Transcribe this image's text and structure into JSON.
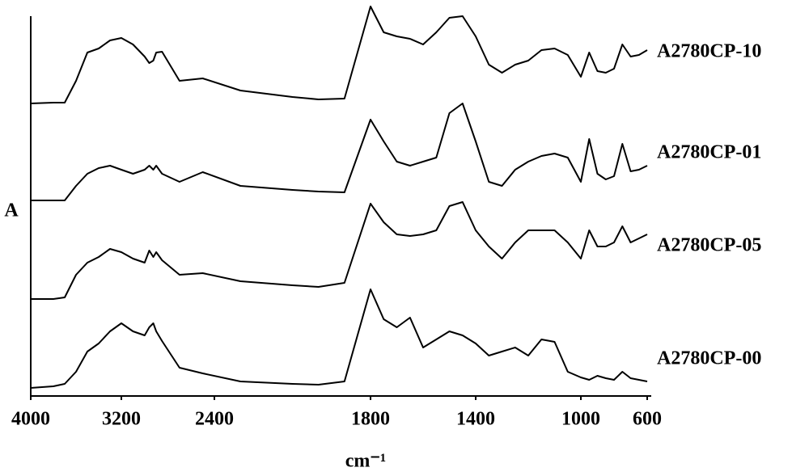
{
  "chart_data": {
    "type": "line",
    "x_label": "cm⁻¹",
    "y_label": "A",
    "x": [
      4000,
      3800,
      3700,
      3600,
      3500,
      3400,
      3300,
      3200,
      3100,
      3000,
      2960,
      2925,
      2900,
      2850,
      2700,
      2500,
      2300,
      2100,
      2000,
      1900,
      1800,
      1750,
      1700,
      1650,
      1600,
      1550,
      1500,
      1450,
      1400,
      1350,
      1300,
      1250,
      1200,
      1150,
      1100,
      1050,
      1000,
      950,
      900,
      850,
      800,
      750,
      700,
      650,
      600
    ],
    "xlim": [
      4000,
      600
    ],
    "xticks": [
      4000,
      3200,
      2400,
      1800,
      1400,
      1000,
      600
    ],
    "ylim": [
      0,
      470
    ],
    "series": [
      {
        "name": "A2780CP-10",
        "color": "#000000",
        "values": [
          362,
          363,
          363,
          390,
          425,
          430,
          440,
          443,
          435,
          420,
          412,
          415,
          425,
          426,
          390,
          393,
          378,
          370,
          367,
          368,
          482,
          450,
          445,
          442,
          435,
          450,
          468,
          470,
          445,
          410,
          400,
          410,
          415,
          428,
          430,
          422,
          395,
          425,
          402,
          400,
          405,
          435,
          420,
          422,
          428
        ]
      },
      {
        "name": "A2780CP-01",
        "color": "#000000",
        "values": [
          242,
          242,
          242,
          260,
          275,
          282,
          285,
          280,
          275,
          280,
          285,
          280,
          285,
          275,
          265,
          277,
          260,
          255,
          253,
          252,
          342,
          315,
          290,
          285,
          290,
          295,
          350,
          362,
          315,
          265,
          260,
          280,
          290,
          297,
          300,
          295,
          265,
          318,
          275,
          268,
          272,
          312,
          278,
          280,
          285
        ]
      },
      {
        "name": "A2780CP-05",
        "color": "#000000",
        "values": [
          120,
          120,
          122,
          150,
          165,
          172,
          182,
          178,
          170,
          165,
          180,
          172,
          178,
          168,
          150,
          152,
          142,
          137,
          135,
          140,
          238,
          215,
          200,
          198,
          200,
          205,
          235,
          240,
          205,
          185,
          170,
          190,
          205,
          205,
          205,
          190,
          170,
          205,
          185,
          185,
          190,
          210,
          190,
          195,
          200
        ]
      },
      {
        "name": "A2780CP-00",
        "color": "#000000",
        "values": [
          10,
          12,
          15,
          30,
          55,
          65,
          80,
          90,
          80,
          75,
          85,
          90,
          80,
          68,
          35,
          28,
          18,
          15,
          14,
          18,
          132,
          95,
          85,
          97,
          60,
          70,
          80,
          75,
          65,
          50,
          55,
          60,
          50,
          70,
          67,
          30,
          23,
          20,
          25,
          22,
          20,
          30,
          22,
          20,
          18
        ]
      }
    ]
  }
}
